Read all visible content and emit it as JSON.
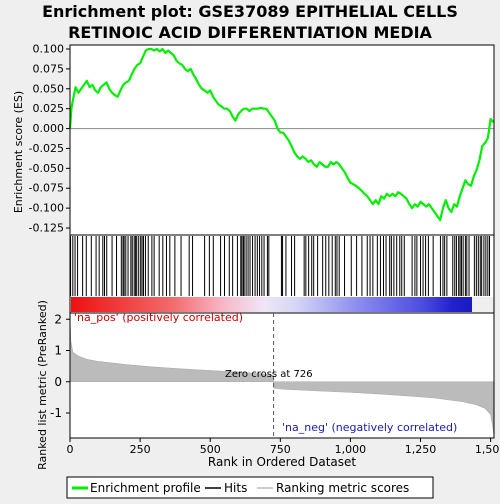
{
  "chart_data": {
    "type": "line",
    "title_lines": [
      "Enrichment plot: GSE37089 EPITHELIAL CELLS",
      "RETINOIC ACID DIFFERENTIATION MEDIA"
    ],
    "top_panel": {
      "ylabel": "Enrichment score (ES)",
      "ylim": [
        -0.13,
        0.1
      ],
      "yticks": [
        "0.100",
        "0.075",
        "0.050",
        "0.025",
        "0.000",
        "-0.025",
        "-0.050",
        "-0.075",
        "-0.100",
        "-0.125"
      ],
      "ytick_values": [
        0.1,
        0.075,
        0.05,
        0.025,
        0.0,
        -0.025,
        -0.05,
        -0.075,
        -0.1,
        -0.125
      ],
      "series": [
        {
          "name": "Enrichment profile",
          "color": "#00ee00",
          "x": [
            0,
            5,
            10,
            20,
            30,
            40,
            50,
            60,
            70,
            80,
            90,
            100,
            110,
            120,
            130,
            140,
            150,
            160,
            170,
            180,
            190,
            200,
            210,
            220,
            230,
            240,
            250,
            260,
            270,
            280,
            290,
            300,
            310,
            320,
            330,
            340,
            350,
            360,
            370,
            380,
            390,
            400,
            410,
            420,
            430,
            440,
            450,
            460,
            470,
            480,
            490,
            500,
            510,
            520,
            530,
            540,
            550,
            560,
            570,
            580,
            590,
            600,
            610,
            620,
            630,
            640,
            650,
            660,
            670,
            680,
            690,
            700,
            710,
            720,
            730,
            740,
            750,
            760,
            770,
            780,
            790,
            800,
            810,
            820,
            830,
            840,
            850,
            860,
            870,
            880,
            890,
            900,
            910,
            920,
            930,
            940,
            950,
            960,
            970,
            980,
            990,
            1000,
            1010,
            1020,
            1030,
            1040,
            1050,
            1060,
            1070,
            1080,
            1090,
            1100,
            1110,
            1120,
            1130,
            1140,
            1150,
            1160,
            1170,
            1180,
            1190,
            1200,
            1210,
            1220,
            1230,
            1240,
            1250,
            1260,
            1270,
            1280,
            1290,
            1300,
            1310,
            1320,
            1330,
            1340,
            1350,
            1360,
            1370,
            1380,
            1390,
            1400,
            1410,
            1420,
            1430,
            1440,
            1450,
            1460,
            1470,
            1480,
            1490,
            1500,
            1510
          ],
          "y": [
            0.0,
            0.025,
            0.035,
            0.052,
            0.045,
            0.05,
            0.055,
            0.06,
            0.052,
            0.055,
            0.048,
            0.045,
            0.052,
            0.055,
            0.058,
            0.05,
            0.045,
            0.042,
            0.04,
            0.048,
            0.055,
            0.058,
            0.06,
            0.068,
            0.075,
            0.08,
            0.082,
            0.09,
            0.098,
            0.1,
            0.1,
            0.098,
            0.1,
            0.097,
            0.1,
            0.095,
            0.098,
            0.095,
            0.092,
            0.085,
            0.082,
            0.08,
            0.075,
            0.072,
            0.075,
            0.068,
            0.062,
            0.055,
            0.05,
            0.048,
            0.045,
            0.048,
            0.04,
            0.035,
            0.03,
            0.028,
            0.025,
            0.025,
            0.022,
            0.015,
            0.01,
            0.018,
            0.022,
            0.025,
            0.025,
            0.022,
            0.025,
            0.025,
            0.025,
            0.026,
            0.025,
            0.025,
            0.02,
            0.015,
            0.01,
            0.0,
            -0.005,
            -0.005,
            -0.01,
            -0.015,
            -0.022,
            -0.03,
            -0.035,
            -0.038,
            -0.035,
            -0.038,
            -0.042,
            -0.04,
            -0.045,
            -0.048,
            -0.042,
            -0.045,
            -0.048,
            -0.048,
            -0.042,
            -0.045,
            -0.042,
            -0.045,
            -0.05,
            -0.055,
            -0.062,
            -0.068,
            -0.07,
            -0.072,
            -0.075,
            -0.078,
            -0.082,
            -0.085,
            -0.09,
            -0.095,
            -0.09,
            -0.095,
            -0.085,
            -0.088,
            -0.082,
            -0.085,
            -0.082,
            -0.085,
            -0.08,
            -0.082,
            -0.085,
            -0.088,
            -0.095,
            -0.1,
            -0.095,
            -0.098,
            -0.092,
            -0.095,
            -0.098,
            -0.095,
            -0.1,
            -0.105,
            -0.11,
            -0.115,
            -0.1,
            -0.09,
            -0.1,
            -0.105,
            -0.095,
            -0.098,
            -0.085,
            -0.075,
            -0.065,
            -0.07,
            -0.072,
            -0.06,
            -0.052,
            -0.04,
            -0.022,
            -0.018,
            -0.012,
            0.012,
            0.008
          ]
        }
      ],
      "zero_line": true
    },
    "hits_panel": {
      "name": "Hits",
      "hit_ranks": [
        2,
        10,
        18,
        27,
        45,
        58,
        76,
        93,
        104,
        117,
        123,
        131,
        150,
        166,
        183,
        189,
        193,
        199,
        207,
        217,
        222,
        229,
        234,
        238,
        245,
        252,
        257,
        262,
        269,
        279,
        292,
        300,
        318,
        331,
        344,
        356,
        374,
        396,
        425,
        437,
        480,
        497,
        511,
        537,
        551,
        568,
        580,
        597,
        609,
        613,
        618,
        621,
        628,
        635,
        642,
        651,
        660,
        668,
        676,
        684,
        692,
        704,
        709,
        754,
        758,
        770,
        790,
        801,
        835,
        841,
        851,
        862,
        869,
        883,
        901,
        912,
        923,
        935,
        946,
        952,
        960,
        979,
        1003,
        1022,
        1041,
        1060,
        1070,
        1080,
        1096,
        1107,
        1118,
        1127,
        1140,
        1146,
        1155,
        1165,
        1176,
        1183,
        1192,
        1220,
        1230,
        1237,
        1250,
        1259,
        1268,
        1278,
        1295,
        1321,
        1330,
        1336,
        1344,
        1365,
        1372,
        1378,
        1386,
        1391,
        1396,
        1402,
        1410,
        1415,
        1423,
        1442,
        1449,
        1456,
        1463,
        1468,
        1476,
        1483,
        1490,
        1496
      ]
    },
    "ranking_panel": {
      "name": "Ranking metric scores",
      "ylabel": "Ranked list metric (PreRanked)",
      "ylim": [
        -1.8,
        2.2
      ],
      "yticks": [
        "2",
        "1",
        "0",
        "-1"
      ],
      "ytick_values": [
        2,
        1,
        0,
        -1
      ],
      "label_pos": "'na_pos' (positively correlated)",
      "label_neg": "'na_neg' (negatively correlated)",
      "zero_cross_label": "Zero cross at 726",
      "zero_cross": 726,
      "series_profile": [
        [
          0,
          2.1
        ],
        [
          3,
          1.3
        ],
        [
          10,
          0.95
        ],
        [
          30,
          0.82
        ],
        [
          60,
          0.72
        ],
        [
          100,
          0.65
        ],
        [
          200,
          0.55
        ],
        [
          300,
          0.47
        ],
        [
          400,
          0.41
        ],
        [
          500,
          0.36
        ],
        [
          600,
          0.31
        ],
        [
          700,
          0.24
        ],
        [
          725,
          0.2
        ],
        [
          726,
          -0.2
        ],
        [
          760,
          -0.24
        ],
        [
          900,
          -0.3
        ],
        [
          1000,
          -0.34
        ],
        [
          1100,
          -0.39
        ],
        [
          1200,
          -0.45
        ],
        [
          1300,
          -0.52
        ],
        [
          1400,
          -0.64
        ],
        [
          1450,
          -0.74
        ],
        [
          1480,
          -0.85
        ],
        [
          1500,
          -1.05
        ],
        [
          1508,
          -1.45
        ],
        [
          1512,
          -1.75
        ]
      ]
    },
    "xaxis": {
      "label": "Rank in Ordered Dataset",
      "xlim": [
        0,
        1512
      ],
      "ticks": [
        "0",
        "250",
        "500",
        "750",
        "1,000",
        "1,250",
        "1,500"
      ],
      "tick_values": [
        0,
        250,
        500,
        750,
        1000,
        1250,
        1500
      ]
    },
    "legend": {
      "placement": "bottom",
      "entries": [
        {
          "label": "Enrichment profile",
          "color": "#00ee00"
        },
        {
          "label": "Hits",
          "color": "#000000"
        },
        {
          "label": "Ranking metric scores",
          "color": "#bbbbbb"
        }
      ]
    }
  }
}
